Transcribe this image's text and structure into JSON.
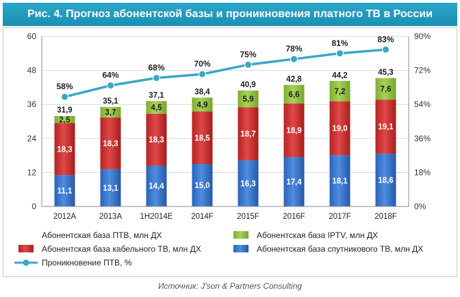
{
  "title": "Рис. 4. Прогноз абонентской базы и проникновения платного ТВ в России",
  "source": "Источник: J'son & Partners Consulting",
  "colors": {
    "title_bg": "#1b9cc2",
    "satellite": "#2f6fc8",
    "cable": "#c52a2a",
    "iptv": "#8dba3c",
    "penetration": "#3aa7c6"
  },
  "chart_data": {
    "type": "bar",
    "stacked": true,
    "categories": [
      "2012A",
      "2013A",
      "1H2014E",
      "2014F",
      "2015F",
      "2016F",
      "2017F",
      "2018F"
    ],
    "series": [
      {
        "name": "Абонентская база спутникового ТВ, млн ДХ",
        "values": [
          11.1,
          13.1,
          14.4,
          15.0,
          16.3,
          17.4,
          18.1,
          18.6
        ],
        "labels": [
          "11,1",
          "13,1",
          "14,4",
          "15,0",
          "16,3",
          "17,4",
          "18,1",
          "18,6"
        ]
      },
      {
        "name": "Абонентская база кабельного ТВ, млн ДХ",
        "values": [
          18.3,
          18.3,
          18.3,
          18.5,
          18.7,
          18.9,
          19.0,
          19.1
        ],
        "labels": [
          "18,3",
          "18,3",
          "18,3",
          "18,5",
          "18,7",
          "18,9",
          "19,0",
          "19,1"
        ]
      },
      {
        "name": "Абонентская база IPTV, млн ДХ",
        "values": [
          2.5,
          3.7,
          4.5,
          4.9,
          5.9,
          6.6,
          7.2,
          7.6
        ],
        "labels": [
          "2,5",
          "3,7",
          "4,5",
          "4,9",
          "5,9",
          "6,6",
          "7,2",
          "7,6"
        ]
      }
    ],
    "totals": [
      31.9,
      35.1,
      37.1,
      38.4,
      40.9,
      42.8,
      44.2,
      45.3
    ],
    "total_labels": [
      "31,9",
      "35,1",
      "37,1",
      "38,4",
      "40,9",
      "42,8",
      "44,2",
      "45,3"
    ],
    "line_series": {
      "name": "Проникновение ПТВ, %",
      "values": [
        58,
        64,
        68,
        70,
        75,
        78,
        81,
        83
      ],
      "labels": [
        "58%",
        "64%",
        "68%",
        "70%",
        "75%",
        "78%",
        "81%",
        "83%"
      ]
    },
    "ylim": [
      0,
      60
    ],
    "y_ticks": [
      "0",
      "12",
      "24",
      "36",
      "48",
      "60"
    ],
    "y2lim": [
      0,
      90
    ],
    "y2_ticks": [
      "0%",
      "18%",
      "36%",
      "54%",
      "72%",
      "90%"
    ],
    "legend": [
      {
        "key": "cable_bar",
        "label": "Абонентская база ПТВ, млн ДХ",
        "swatch": "none"
      },
      {
        "key": "iptv",
        "label": "Абонентская база IPTV, млн ДХ",
        "swatch": "iptv"
      },
      {
        "key": "cable",
        "label": "Абонентская база кабельного ТВ, млн ДХ",
        "swatch": "cable"
      },
      {
        "key": "satellite",
        "label": "Абонентская база спутникового ТВ, млн ДХ",
        "swatch": "satellite"
      },
      {
        "key": "penetration",
        "label": "Проникновение ПТВ, %",
        "swatch": "line"
      }
    ],
    "legend_position": "bottom"
  }
}
